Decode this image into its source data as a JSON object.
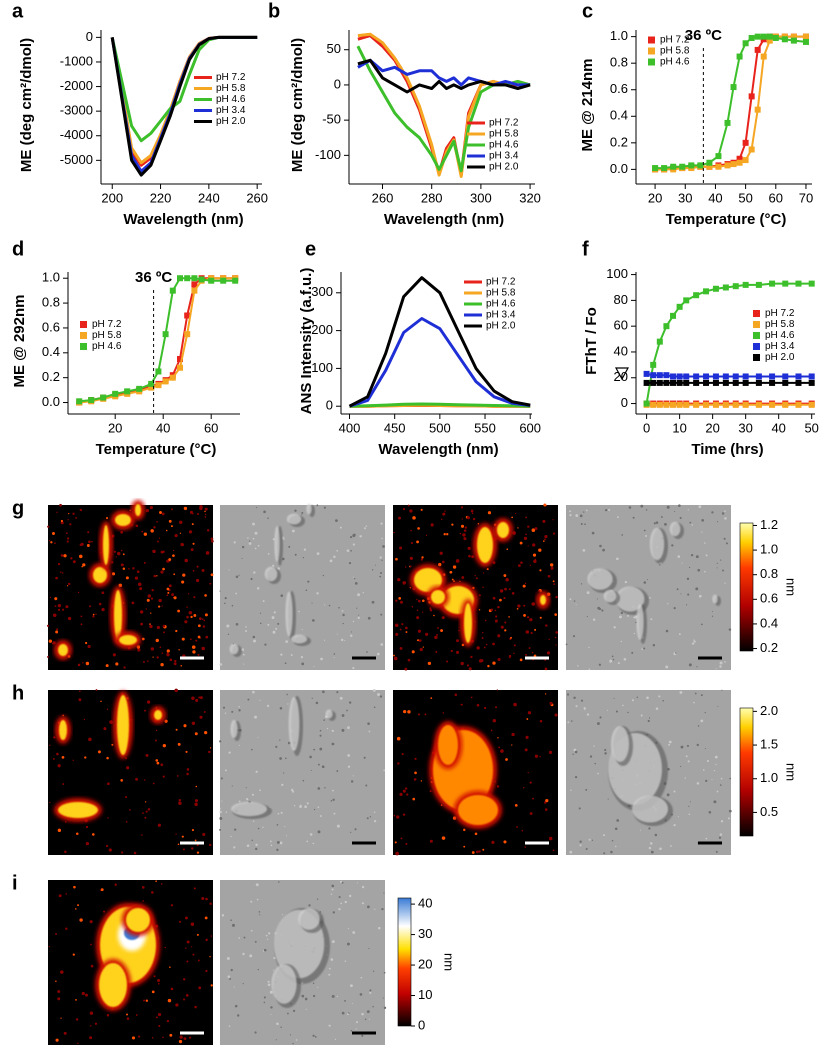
{
  "chart_data": [
    {
      "type": "line",
      "panel": "a",
      "xlabel": "Wavelength (nm)",
      "ylabel": "ME (deg cm²/dmol)",
      "x": [
        200,
        204,
        208,
        212,
        216,
        220,
        224,
        228,
        232,
        236,
        240,
        244,
        248,
        252,
        256,
        260
      ],
      "xlim": [
        197,
        262
      ],
      "xticks": [
        200,
        220,
        240,
        260
      ],
      "ylim": [
        -5800,
        300
      ],
      "yticks": [
        0,
        -1000,
        -2000,
        -3000,
        -4000,
        -5000
      ],
      "grid": false,
      "legend": "right",
      "markers": false,
      "series": [
        {
          "name": "pH 7.2",
          "color": "#e8231c",
          "values": [
            0,
            -2200,
            -4600,
            -5200,
            -4900,
            -4000,
            -3000,
            -1800,
            -800,
            -250,
            -40,
            0,
            0,
            0,
            0,
            0
          ]
        },
        {
          "name": "pH 5.8",
          "color": "#f5a623",
          "values": [
            0,
            -2200,
            -4500,
            -5100,
            -4800,
            -3950,
            -2950,
            -1800,
            -800,
            -250,
            -40,
            0,
            0,
            0,
            0,
            0
          ]
        },
        {
          "name": "pH 4.6",
          "color": "#3cbf2a",
          "values": [
            0,
            -1800,
            -3600,
            -4200,
            -3900,
            -3400,
            -2900,
            -2600,
            -1500,
            -500,
            -100,
            0,
            0,
            0,
            0,
            0
          ]
        },
        {
          "name": "pH 3.4",
          "color": "#1f2fd6",
          "values": [
            0,
            -2400,
            -4800,
            -5450,
            -5100,
            -4100,
            -3100,
            -1900,
            -850,
            -280,
            -50,
            0,
            0,
            0,
            0,
            0
          ]
        },
        {
          "name": "pH 2.0",
          "color": "#000000",
          "values": [
            0,
            -2500,
            -5000,
            -5600,
            -5200,
            -4200,
            -3200,
            -2000,
            -900,
            -300,
            -50,
            0,
            0,
            0,
            0,
            0
          ]
        }
      ]
    },
    {
      "type": "line",
      "panel": "b",
      "xlabel": "Wavelength (nm)",
      "ylabel": "ME (deg cm²/dmol)",
      "x": [
        250,
        255,
        260,
        265,
        270,
        275,
        280,
        283,
        286,
        289,
        292,
        295,
        300,
        305,
        310,
        315,
        320
      ],
      "xlim": [
        248,
        322
      ],
      "xticks": [
        260,
        280,
        300,
        320
      ],
      "ylim": [
        -135,
        78
      ],
      "yticks": [
        50,
        0,
        -50,
        -100
      ],
      "grid": false,
      "legend": "lower right",
      "markers": false,
      "series": [
        {
          "name": "pH 7.2",
          "color": "#e8231c",
          "values": [
            65,
            70,
            55,
            35,
            5,
            -35,
            -90,
            -125,
            -90,
            -75,
            -128,
            -40,
            0,
            5,
            0,
            0,
            0
          ]
        },
        {
          "name": "pH 5.8",
          "color": "#f5a623",
          "values": [
            70,
            72,
            60,
            38,
            10,
            -30,
            -85,
            -128,
            -95,
            -78,
            -130,
            -45,
            0,
            5,
            0,
            5,
            0
          ]
        },
        {
          "name": "pH 4.6",
          "color": "#3cbf2a",
          "values": [
            55,
            20,
            -10,
            -40,
            -60,
            -75,
            -100,
            -120,
            -100,
            -80,
            -122,
            -60,
            -10,
            0,
            0,
            5,
            0
          ]
        },
        {
          "name": "pH 3.4",
          "color": "#1f2fd6",
          "values": [
            25,
            35,
            20,
            25,
            15,
            20,
            20,
            10,
            5,
            10,
            0,
            10,
            5,
            0,
            5,
            0,
            0
          ]
        },
        {
          "name": "pH 2.0",
          "color": "#000000",
          "values": [
            30,
            35,
            10,
            0,
            -10,
            0,
            -5,
            5,
            -5,
            0,
            -5,
            0,
            5,
            0,
            0,
            -5,
            0
          ]
        }
      ]
    },
    {
      "type": "line",
      "panel": "c",
      "xlabel": "Temperature (°C)",
      "ylabel": "ME @ 214nm",
      "x": [
        20,
        23,
        26,
        29,
        32,
        35,
        38,
        41,
        44,
        46,
        48,
        50,
        52,
        54,
        56,
        58,
        60,
        63,
        66,
        70
      ],
      "xlim": [
        15,
        72
      ],
      "xticks": [
        20,
        30,
        40,
        50,
        60,
        70
      ],
      "ylim": [
        -0.08,
        1.05
      ],
      "yticks": [
        {
          "value": 0,
          "label": "0.0"
        },
        0.2,
        0.4,
        0.6,
        0.8,
        {
          "value": 1,
          "label": "1.0"
        }
      ],
      "vline": 36,
      "vline_label": "36 ºC",
      "grid": false,
      "legend": "upper left",
      "markers": true,
      "series": [
        {
          "name": "pH 7.2",
          "color": "#e8231c",
          "values": [
            0,
            0,
            0.01,
            0.01,
            0.02,
            0.02,
            0.02,
            0.03,
            0.04,
            0.05,
            0.08,
            0.2,
            0.55,
            0.9,
            0.98,
            1,
            1,
            1,
            1,
            1
          ]
        },
        {
          "name": "pH 5.8",
          "color": "#f5a623",
          "values": [
            0,
            0,
            0,
            0.01,
            0.01,
            0.02,
            0.02,
            0.02,
            0.03,
            0.04,
            0.05,
            0.07,
            0.15,
            0.45,
            0.85,
            0.97,
            1,
            1,
            1,
            1
          ]
        },
        {
          "name": "pH 4.6",
          "color": "#3cbf2a",
          "values": [
            0.01,
            0.01,
            0.02,
            0.02,
            0.03,
            0.03,
            0.05,
            0.1,
            0.35,
            0.62,
            0.85,
            0.95,
            0.99,
            1,
            1,
            1,
            0.99,
            0.98,
            0.97,
            0.96
          ]
        }
      ]
    },
    {
      "type": "line",
      "panel": "d",
      "xlabel": "Temperature (°C)",
      "ylabel": "ME @ 292nm",
      "x": [
        5,
        10,
        15,
        20,
        25,
        30,
        35,
        38,
        41,
        44,
        47,
        50,
        53,
        56,
        60,
        65,
        70
      ],
      "xlim": [
        2,
        72
      ],
      "xticks": [
        20,
        40,
        60
      ],
      "ylim": [
        -0.06,
        1.05
      ],
      "yticks": [
        {
          "value": 0,
          "label": "0.0"
        },
        0.2,
        0.4,
        0.6,
        0.8,
        {
          "value": 1,
          "label": "1.0"
        }
      ],
      "vline": 36,
      "vline_label": "36 ºC",
      "grid": false,
      "legend": "left",
      "markers": true,
      "series": [
        {
          "name": "pH 7.2",
          "color": "#e8231c",
          "values": [
            0,
            0.02,
            0.04,
            0.06,
            0.08,
            0.1,
            0.13,
            0.15,
            0.18,
            0.22,
            0.35,
            0.7,
            0.95,
            1,
            1,
            1,
            1
          ]
        },
        {
          "name": "pH 5.8",
          "color": "#f5a623",
          "values": [
            0,
            0.01,
            0.03,
            0.05,
            0.07,
            0.09,
            0.12,
            0.14,
            0.17,
            0.2,
            0.28,
            0.55,
            0.9,
            0.98,
            1,
            1,
            1
          ]
        },
        {
          "name": "pH 4.6",
          "color": "#3cbf2a",
          "values": [
            0.01,
            0.02,
            0.04,
            0.07,
            0.09,
            0.11,
            0.15,
            0.25,
            0.55,
            0.9,
            1,
            1,
            1,
            0.99,
            0.98,
            0.98,
            0.98
          ]
        }
      ]
    },
    {
      "type": "line",
      "panel": "e",
      "xlabel": "Wavelength (nm)",
      "ylabel": "ANS Intensity (a.f.u.)",
      "x": [
        400,
        420,
        440,
        460,
        480,
        500,
        520,
        540,
        560,
        580,
        600
      ],
      "xlim": [
        395,
        602
      ],
      "xticks": [
        400,
        450,
        500,
        550,
        600
      ],
      "ylim": [
        -10,
        355
      ],
      "yticks": [
        0,
        100,
        200,
        300
      ],
      "grid": false,
      "legend": "upper right",
      "markers": false,
      "series": [
        {
          "name": "pH 7.2",
          "color": "#e8231c",
          "values": [
            0,
            0,
            1,
            2,
            2,
            2,
            1,
            1,
            0,
            0,
            0
          ]
        },
        {
          "name": "pH 5.8",
          "color": "#f5a623",
          "values": [
            0,
            0,
            1,
            2,
            3,
            2,
            1,
            1,
            0,
            0,
            0
          ]
        },
        {
          "name": "pH 4.6",
          "color": "#3cbf2a",
          "values": [
            0,
            1,
            3,
            5,
            6,
            5,
            4,
            3,
            2,
            1,
            0
          ]
        },
        {
          "name": "pH 3.4",
          "color": "#1f2fd6",
          "values": [
            0,
            15,
            95,
            195,
            232,
            205,
            135,
            65,
            25,
            8,
            2
          ]
        },
        {
          "name": "pH 2.0",
          "color": "#000000",
          "values": [
            0,
            25,
            140,
            290,
            340,
            300,
            200,
            100,
            40,
            12,
            3
          ]
        }
      ]
    },
    {
      "type": "line",
      "panel": "f",
      "xlabel": "Time (hrs)",
      "ylabel": "FThT / Fo",
      "x": [
        0,
        2,
        4,
        6,
        8,
        10,
        12,
        15,
        18,
        21,
        24,
        27,
        30,
        34,
        38,
        42,
        46,
        50
      ],
      "xlim": [
        -2,
        51
      ],
      "xticks": [
        0,
        10,
        20,
        30,
        40,
        50
      ],
      "ylim": [
        -5,
        102
      ],
      "yticks": [
        0,
        20,
        40,
        60,
        80,
        100
      ],
      "grid": false,
      "legend": "right",
      "markers": true,
      "series": [
        {
          "name": "pH 7.2",
          "color": "#e8231c",
          "values": [
            0,
            0,
            0,
            0,
            0,
            0,
            0,
            0,
            0,
            0,
            0,
            0,
            0,
            0,
            0,
            0,
            0,
            0
          ]
        },
        {
          "name": "pH 5.8",
          "color": "#f5a623",
          "values": [
            -1,
            -1,
            -1,
            -1,
            -1,
            -1,
            -1,
            -1,
            -1,
            -1,
            -1,
            -1,
            -1,
            -1,
            -1,
            -1,
            -1,
            -1
          ]
        },
        {
          "name": "pH 4.6",
          "color": "#3cbf2a",
          "values": [
            0,
            30,
            48,
            60,
            68,
            75,
            80,
            84,
            87,
            89,
            90,
            91,
            92,
            92,
            93,
            93,
            93,
            93
          ]
        },
        {
          "name": "pH 3.4",
          "color": "#1f2fd6",
          "values": [
            23,
            22,
            22,
            22,
            21,
            21,
            21,
            21,
            21,
            21,
            21,
            21,
            21,
            21,
            21,
            21,
            21,
            21
          ]
        },
        {
          "name": "pH 2.0",
          "color": "#000000",
          "values": [
            16,
            16,
            16,
            16,
            16,
            16,
            16,
            16,
            16,
            16,
            16,
            16,
            16,
            16,
            16,
            16,
            16,
            16
          ]
        }
      ]
    }
  ],
  "images": [
    {
      "panel": "g",
      "colorbar": {
        "range": [
          0.18,
          1.22
        ],
        "ticks": [
          0.2,
          0.4,
          0.6,
          0.8,
          {
            "value": 1,
            "label": "1.0"
          },
          1.2
        ],
        "unit": "nm"
      }
    },
    {
      "panel": "h",
      "colorbar": {
        "range": [
          0.15,
          2.05
        ],
        "ticks": [
          0.5,
          {
            "value": 1,
            "label": "1.0"
          },
          1.5,
          {
            "value": 2,
            "label": "2.0"
          }
        ],
        "unit": "nm"
      }
    },
    {
      "panel": "i",
      "colorbar": {
        "range": [
          0,
          42
        ],
        "ticks": [
          0,
          10,
          20,
          30,
          40
        ],
        "unit": "nm"
      }
    }
  ]
}
